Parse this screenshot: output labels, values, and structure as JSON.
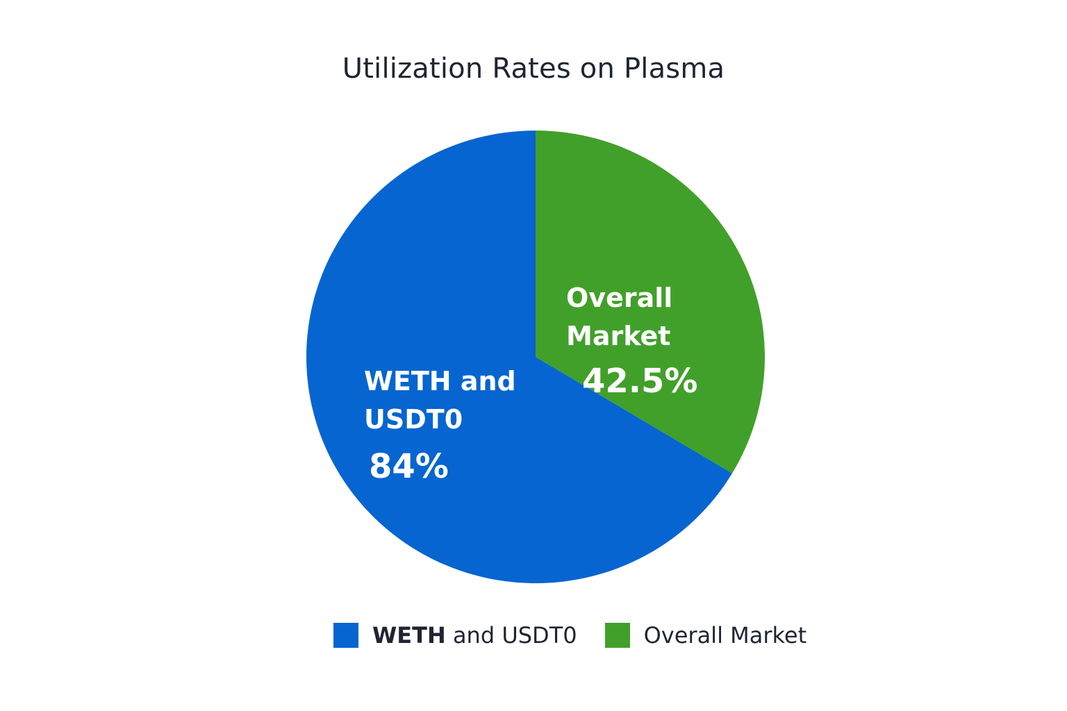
{
  "chart_data": {
    "type": "pie",
    "title": "Utilization Rates on Plasma",
    "slices": [
      {
        "name": "WETH and USDT0",
        "label_lines": [
          "WETH and",
          "USDT0"
        ],
        "value_label": "84%",
        "value": 84,
        "color": "#0665d0"
      },
      {
        "name": "Overall Market",
        "label_lines": [
          "Overall",
          "Market"
        ],
        "value_label": "42.5%",
        "value": 42.5,
        "color": "#41a02a"
      }
    ],
    "legend": {
      "position": "bottom",
      "items": [
        {
          "label_bold": "WETH",
          "label_rest": " and USDT0",
          "color": "#0665d0"
        },
        {
          "label_bold": "",
          "label_rest": "Overall Market",
          "color": "#41a02a"
        }
      ]
    }
  }
}
